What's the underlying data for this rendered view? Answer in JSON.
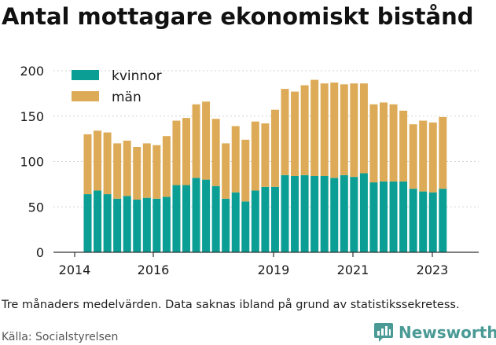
{
  "chart_data": {
    "type": "bar",
    "stacked": true,
    "title": "Antal mottagare ekonomiskt bistånd",
    "xlabel": "",
    "ylabel": "",
    "ylim": [
      0,
      200
    ],
    "yticks": [
      0,
      50,
      100,
      150,
      200
    ],
    "xticks": [
      "2014",
      "2016",
      "2019",
      "2021",
      "2023"
    ],
    "grid": true,
    "legend_position": "top-left",
    "series": [
      {
        "name": "kvinnor",
        "color": "#0a9e95",
        "values": [
          64,
          68,
          64,
          59,
          62,
          58,
          60,
          59,
          61,
          74,
          74,
          82,
          80,
          73,
          59,
          66,
          56,
          68,
          72,
          72,
          85,
          84,
          85,
          84,
          84,
          82,
          85,
          83,
          87,
          77,
          78,
          78,
          78,
          70,
          67,
          66,
          70
        ]
      },
      {
        "name": "män",
        "color": "#ddab57",
        "values": [
          66,
          66,
          68,
          61,
          61,
          58,
          60,
          59,
          67,
          71,
          74,
          81,
          86,
          74,
          61,
          73,
          68,
          76,
          70,
          85,
          95,
          93,
          99,
          106,
          102,
          105,
          100,
          103,
          99,
          86,
          87,
          85,
          78,
          71,
          78,
          77,
          79
        ]
      }
    ]
  },
  "note": "Tre månaders medelvärden. Data saknas ibland på grund av statistikssekretess.",
  "source": "Källa: Socialstyrelsen",
  "brand": {
    "name": "Newsworthy",
    "icon": "newsworthy-logo-icon",
    "color": "#4a9a96"
  }
}
